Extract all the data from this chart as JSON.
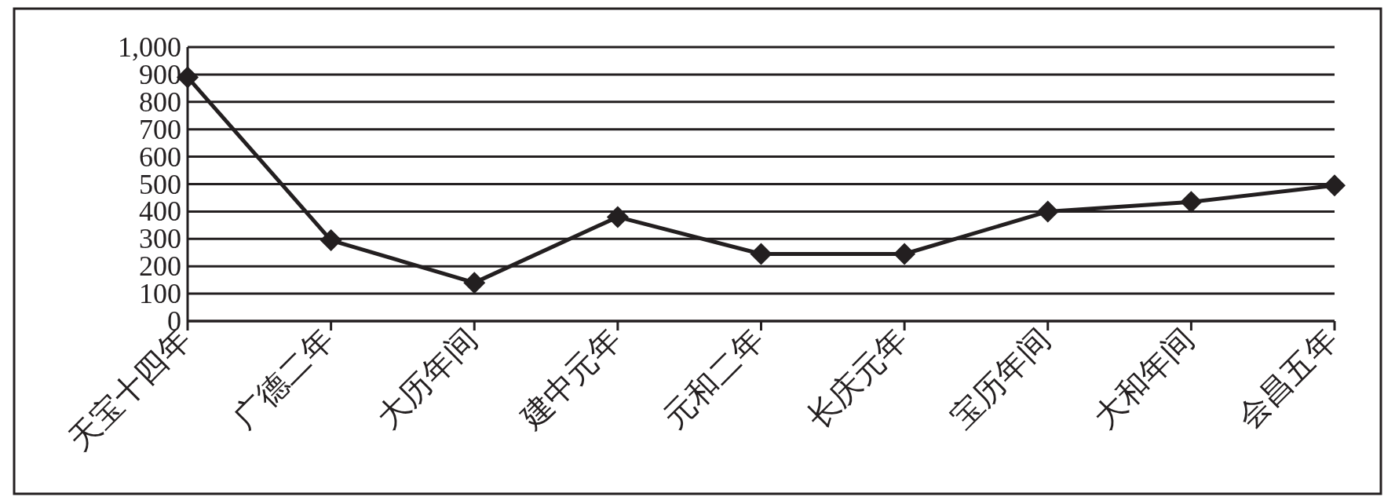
{
  "chart_data": {
    "type": "line",
    "categories": [
      "天宝十四年",
      "广德二年",
      "大历年间",
      "建中元年",
      "元和二年",
      "长庆元年",
      "宝历年间",
      "大和年间",
      "会昌五年"
    ],
    "series": [
      {
        "color": "#231f20",
        "values": [
          890,
          295,
          140,
          380,
          245,
          245,
          400,
          435,
          495
        ]
      }
    ],
    "ylim": [
      0,
      1000
    ],
    "yticks": [
      0,
      100,
      200,
      300,
      400,
      500,
      600,
      700,
      800,
      900,
      {
        "value": 1000,
        "label": "1,000"
      }
    ],
    "grid": "y",
    "marker": "diamond",
    "line_style": "solid"
  }
}
